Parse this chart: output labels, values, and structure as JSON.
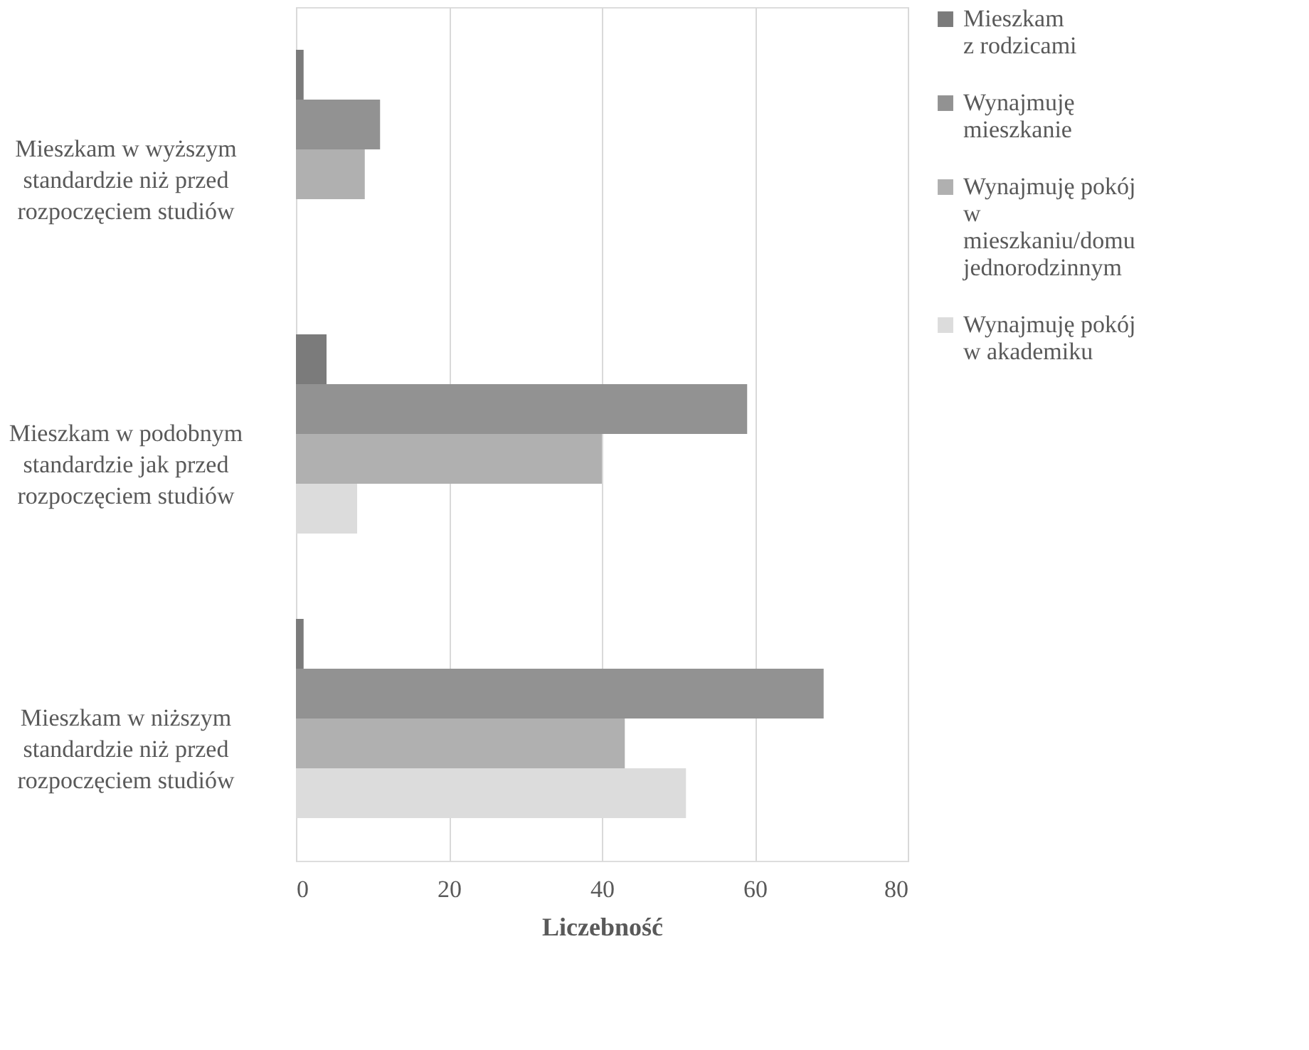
{
  "chart_data": {
    "type": "bar",
    "orientation": "horizontal",
    "xlabel": "Liczebność",
    "categories": [
      "Mieszkam w wyższym standardzie niż przed rozpoczęciem studiów",
      "Mieszkam w podobnym standardzie jak przed rozpoczęciem studiów",
      "Mieszkam w niższym standardzie niż przed rozpoczęciem studiów"
    ],
    "series": [
      {
        "name": "Mieszkam z rodzicami",
        "color": "#7b7b7b",
        "values": [
          1,
          4,
          1
        ]
      },
      {
        "name": "Wynajmuję mieszkanie",
        "color": "#929292",
        "values": [
          11,
          59,
          69
        ]
      },
      {
        "name": "Wynajmuję pokój w mieszkaniu/domu jednorodzinnym",
        "color": "#b0b0b0",
        "values": [
          9,
          40,
          43
        ]
      },
      {
        "name": "Wynajmuję pokój w akademiku",
        "color": "#dcdcdc",
        "values": [
          null,
          8,
          51
        ]
      }
    ],
    "xlim": [
      0,
      80
    ],
    "xticks": [
      0,
      20,
      40,
      60,
      80
    ],
    "grid": "x",
    "legend": "right"
  }
}
